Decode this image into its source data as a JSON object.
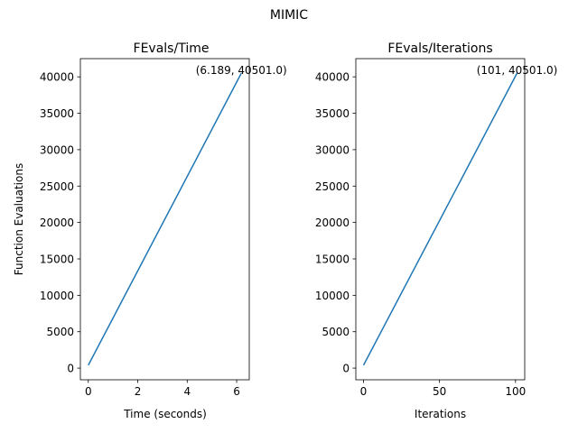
{
  "suptitle": "MIMIC",
  "chart_data": [
    {
      "type": "line",
      "title": "FEvals/Time",
      "xlabel": "Time (seconds)",
      "ylabel": "Function Evaluations",
      "xlim": [
        -0.32,
        6.51
      ],
      "ylim": [
        -1600,
        42500
      ],
      "xticks": [
        0,
        2,
        4,
        6
      ],
      "xtick_labels": [
        "0",
        "2",
        "4",
        "6"
      ],
      "yticks": [
        0,
        5000,
        10000,
        15000,
        20000,
        25000,
        30000,
        35000,
        40000
      ],
      "ytick_labels": [
        "0",
        "5000",
        "10000",
        "15000",
        "20000",
        "25000",
        "30000",
        "35000",
        "40000"
      ],
      "series": [
        {
          "color": "#1f77b4",
          "x": [
            0,
            6.189
          ],
          "y": [
            401,
            40501
          ]
        }
      ],
      "annotation": {
        "text": "(6.189, 40501.0)",
        "x": 6.189,
        "y": 40501.0
      },
      "grid": false
    },
    {
      "type": "line",
      "title": "FEvals/Iterations",
      "xlabel": "Iterations",
      "ylabel": "",
      "xlim": [
        -5.05,
        106.05
      ],
      "ylim": [
        -1600,
        42500
      ],
      "xticks": [
        0,
        50,
        100
      ],
      "xtick_labels": [
        "0",
        "50",
        "100"
      ],
      "yticks": [
        0,
        5000,
        10000,
        15000,
        20000,
        25000,
        30000,
        35000,
        40000
      ],
      "ytick_labels": [
        "0",
        "5000",
        "10000",
        "15000",
        "20000",
        "25000",
        "30000",
        "35000",
        "40000"
      ],
      "series": [
        {
          "color": "#1f77b4",
          "x": [
            0,
            101
          ],
          "y": [
            401,
            40501
          ]
        }
      ],
      "annotation": {
        "text": "(101, 40501.0)",
        "x": 101,
        "y": 40501.0
      },
      "grid": false
    }
  ]
}
